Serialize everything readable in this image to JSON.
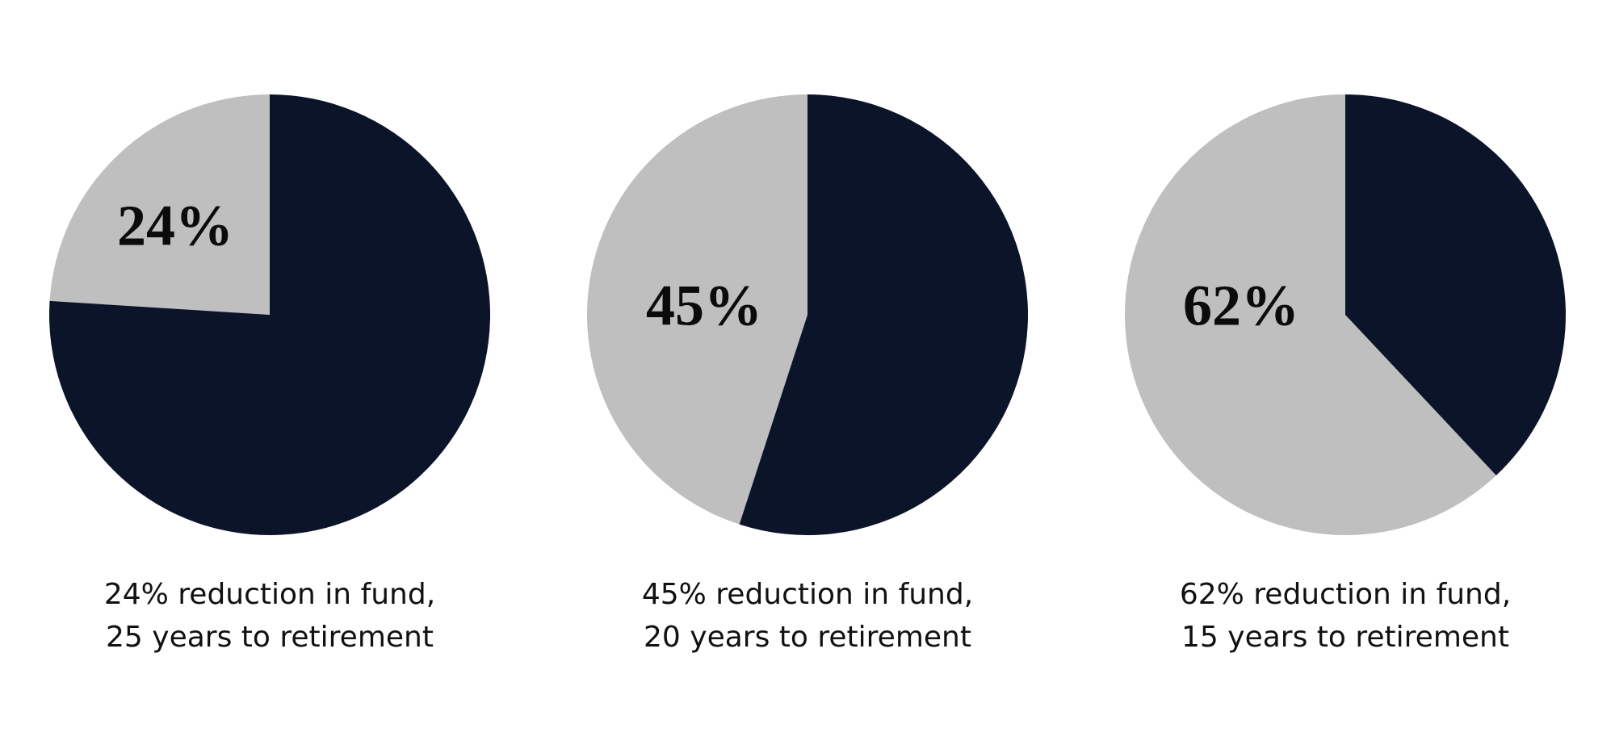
{
  "chart_data": [
    {
      "type": "pie",
      "values": [
        24,
        76
      ],
      "value_labels": [
        "24%",
        null
      ],
      "colors": [
        "#bfbfbf",
        "#0b1428"
      ],
      "caption": [
        "24% reduction in fund,",
        "25 years to retirement"
      ]
    },
    {
      "type": "pie",
      "values": [
        45,
        55
      ],
      "value_labels": [
        "45%",
        null
      ],
      "colors": [
        "#bfbfbf",
        "#0b1428"
      ],
      "caption": [
        "45% reduction in fund,",
        "20 years to retirement"
      ]
    },
    {
      "type": "pie",
      "values": [
        62,
        38
      ],
      "value_labels": [
        "62%",
        null
      ],
      "colors": [
        "#bfbfbf",
        "#0b1428"
      ],
      "caption": [
        "62% reduction in fund,",
        "15 years to retirement"
      ]
    }
  ]
}
